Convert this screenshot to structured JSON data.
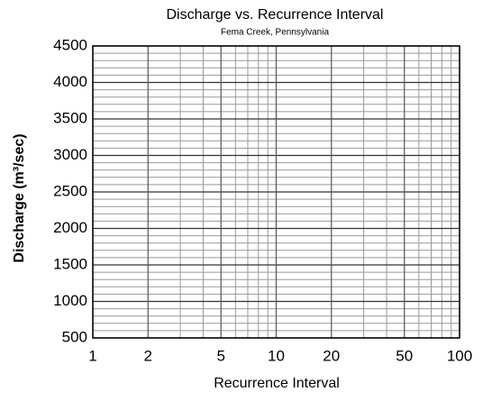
{
  "chart_data": {
    "type": "line",
    "title": "Discharge vs. Recurrence Interval",
    "subtitle": "Fema Creek, Pennsylvania",
    "x_label": "Recurrence Interval",
    "y_label": "Discharge (m³/sec)",
    "xlim": [
      1,
      100
    ],
    "xscale": "log",
    "xticks": [
      1,
      2,
      5,
      10,
      20,
      50,
      100
    ],
    "xminorticks": [
      3,
      4,
      6,
      7,
      8,
      9,
      30,
      40,
      60,
      70,
      80,
      90
    ],
    "ylim": [
      500,
      4500
    ],
    "yticks": [
      500,
      1000,
      1500,
      2000,
      2500,
      3000,
      3500,
      4000,
      4500
    ],
    "yminorticks": [
      600,
      700,
      800,
      900,
      1100,
      1200,
      1300,
      1400,
      1600,
      1700,
      1800,
      1900,
      2100,
      2200,
      2300,
      2400,
      2600,
      2700,
      2800,
      2900,
      3100,
      3200,
      3300,
      3400,
      3600,
      3700,
      3800,
      3900,
      4100,
      4200,
      4300,
      4400
    ],
    "grid": true,
    "series": []
  }
}
